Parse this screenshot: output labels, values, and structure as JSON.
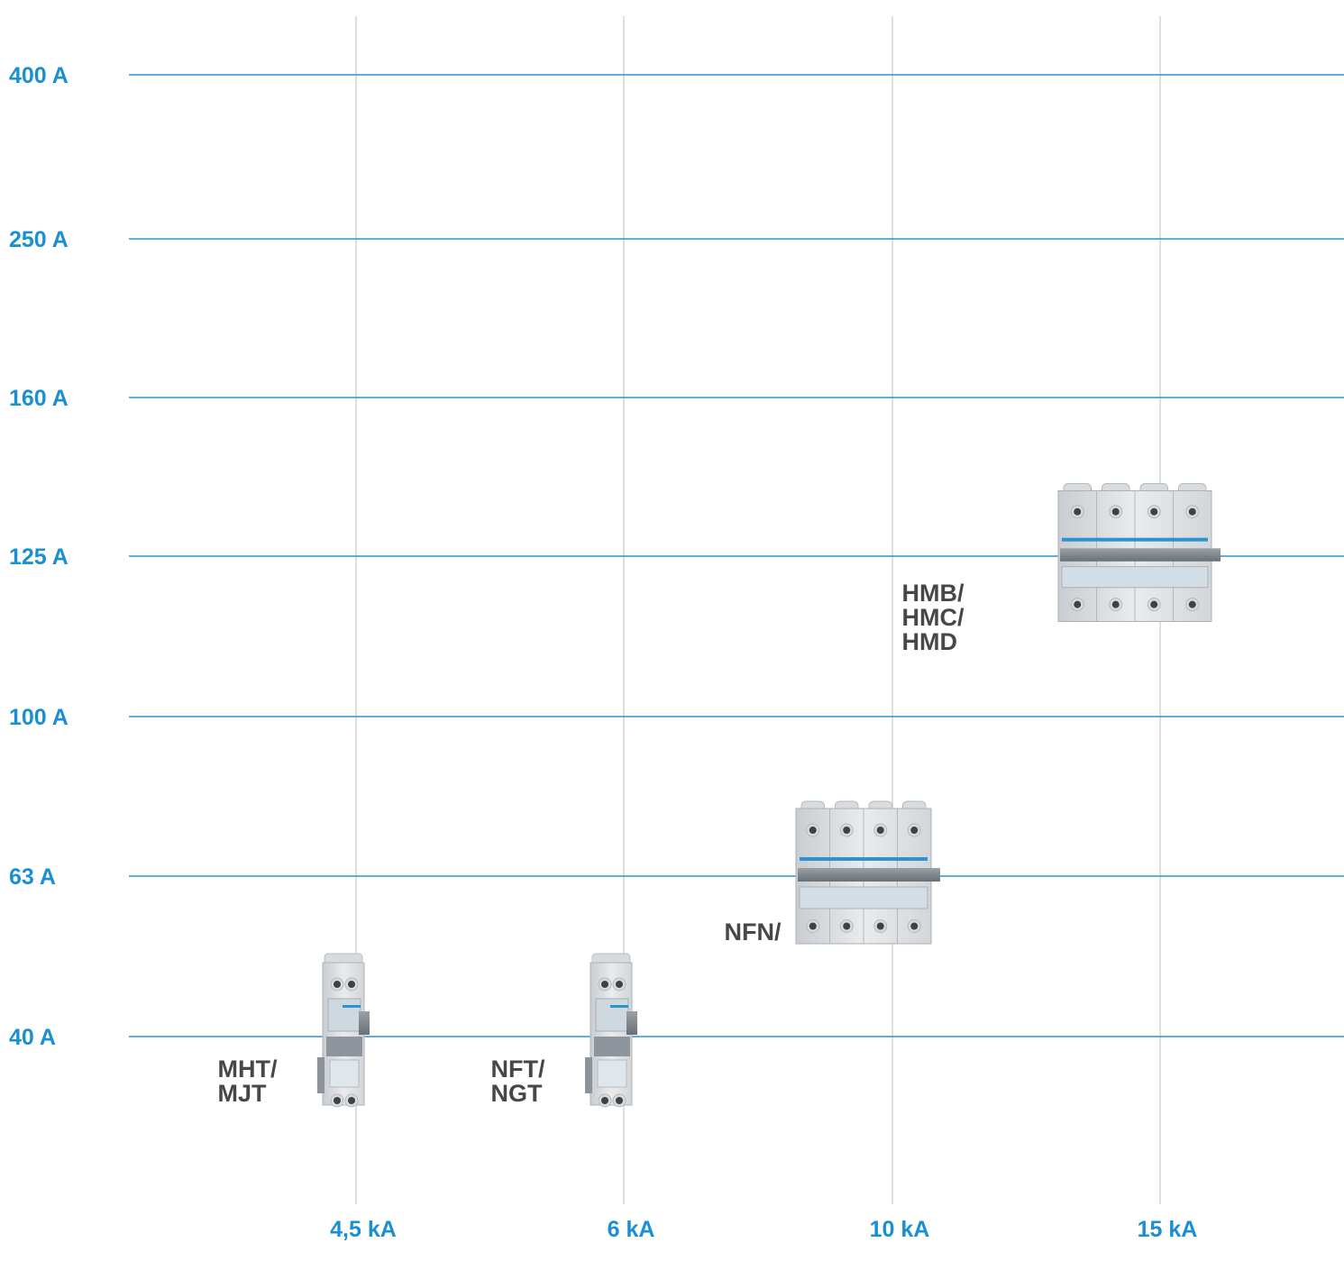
{
  "chart_data": {
    "type": "scatter",
    "title": "",
    "xlabel": "",
    "ylabel": "",
    "x_categories": [
      "4,5 kA",
      "6 kA",
      "10 kA",
      "15 kA"
    ],
    "y_categories": [
      "40 A",
      "63 A",
      "100 A",
      "125 A",
      "160 A",
      "250 A",
      "400 A"
    ],
    "points": [
      {
        "label_lines": [
          "MHT/",
          "MJT"
        ],
        "x": "4,5 kA",
        "y": "40 A",
        "device": "breaker-1p"
      },
      {
        "label_lines": [
          "NFT/",
          "NGT"
        ],
        "x": "6 kA",
        "y": "40 A",
        "device": "breaker-1p"
      },
      {
        "label_lines": [
          "NFN/"
        ],
        "x": "10 kA",
        "y": "63 A",
        "device": "breaker-4p-small"
      },
      {
        "label_lines": [
          "HMB/",
          "HMC/",
          "HMD"
        ],
        "x": "15 kA",
        "y": "125 A",
        "device": "breaker-4p-large"
      }
    ],
    "grid": true,
    "colors": {
      "axis_text": "#1a8fd1",
      "hgrid": "#2b93d0",
      "vgrid": "#c8c8c8",
      "product_text": "#474747"
    }
  }
}
